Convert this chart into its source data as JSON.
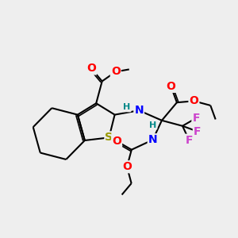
{
  "background_color": "#eeeeee",
  "bond_color": "#000000",
  "bond_width": 1.5,
  "atom_colors": {
    "S": "#999900",
    "N": "#0000ff",
    "O": "#ff0000",
    "F": "#cc44cc",
    "H": "#008888"
  },
  "figsize": [
    3.0,
    3.0
  ],
  "dpi": 100
}
